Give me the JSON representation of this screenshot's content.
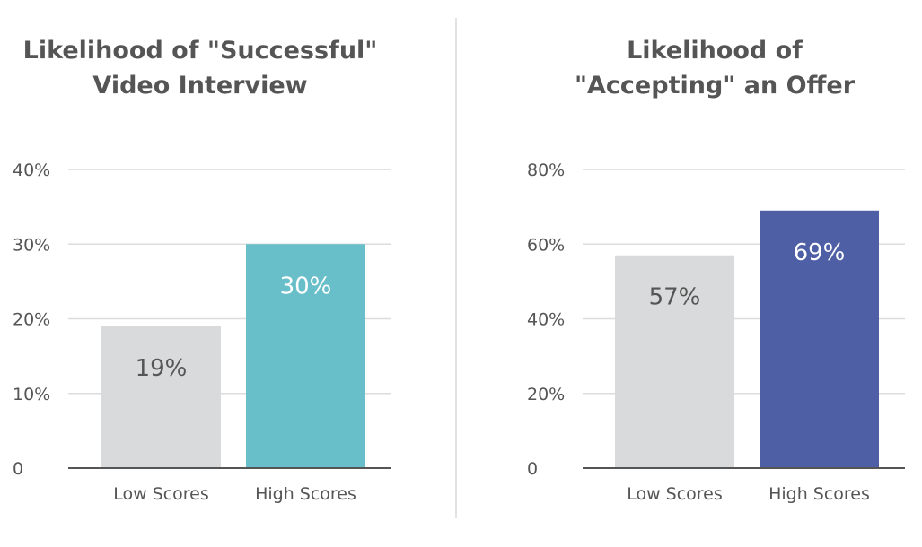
{
  "chart_data": [
    {
      "type": "bar",
      "title_lines": [
        "Likelihood of \"Successful\"",
        "Video Interview"
      ],
      "categories": [
        "Low Scores",
        "High Scores"
      ],
      "values": [
        19,
        30
      ],
      "data_labels": [
        "19%",
        "30%"
      ],
      "ylim": [
        0,
        40
      ],
      "yticks": [
        0,
        10,
        20,
        30,
        40
      ],
      "ytick_labels": [
        "0",
        "10%",
        "20%",
        "30%",
        "40%"
      ],
      "bar_colors": [
        "#d9dadb",
        "#68bfc9"
      ],
      "label_colors": [
        "#555555",
        "#ffffff"
      ],
      "grid": true
    },
    {
      "type": "bar",
      "title_lines": [
        "Likelihood of",
        "\"Accepting\" an Offer"
      ],
      "categories": [
        "Low Scores",
        "High Scores"
      ],
      "values": [
        57,
        69
      ],
      "data_labels": [
        "57%",
        "69%"
      ],
      "ylim": [
        0,
        80
      ],
      "yticks": [
        0,
        20,
        40,
        60,
        80
      ],
      "ytick_labels": [
        "0",
        "20%",
        "40%",
        "60%",
        "80%"
      ],
      "bar_colors": [
        "#d9dadb",
        "#4e5fa6"
      ],
      "label_colors": [
        "#555555",
        "#ffffff"
      ],
      "grid": true
    }
  ]
}
